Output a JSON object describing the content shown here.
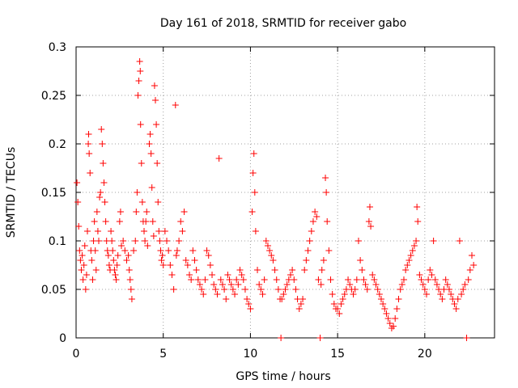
{
  "chart_data": {
    "type": "scatter",
    "title": "Day 161 of 2018, SRMTID for receiver gabo",
    "xlabel": "GPS time / hours",
    "ylabel": "SRMTID / TECUs",
    "xlim": [
      0,
      24
    ],
    "ylim": [
      0,
      0.3
    ],
    "xticks": [
      0,
      5,
      10,
      15,
      20
    ],
    "xtick_labels": [
      "0",
      "5",
      "10",
      "15",
      "20"
    ],
    "yticks": [
      0,
      0.05,
      0.1,
      0.15,
      0.2,
      0.25,
      0.3
    ],
    "ytick_labels": [
      "0",
      "0.05",
      "0.1",
      "0.15",
      "0.2",
      "0.25",
      "0.3"
    ],
    "grid": true,
    "marker": "+",
    "color": "#ff0000",
    "series": [
      {
        "name": "SRMTID",
        "points": [
          [
            0.05,
            0.16
          ],
          [
            0.1,
            0.14
          ],
          [
            0.15,
            0.115
          ],
          [
            0.2,
            0.09
          ],
          [
            0.25,
            0.08
          ],
          [
            0.3,
            0.07
          ],
          [
            0.35,
            0.085
          ],
          [
            0.4,
            0.06
          ],
          [
            0.45,
            0.075
          ],
          [
            0.5,
            0.095
          ],
          [
            0.55,
            0.05
          ],
          [
            0.6,
            0.065
          ],
          [
            0.65,
            0.11
          ],
          [
            0.7,
            0.2
          ],
          [
            0.72,
            0.21
          ],
          [
            0.75,
            0.19
          ],
          [
            0.8,
            0.17
          ],
          [
            0.85,
            0.09
          ],
          [
            0.9,
            0.08
          ],
          [
            0.95,
            0.06
          ],
          [
            1.0,
            0.1
          ],
          [
            1.05,
            0.12
          ],
          [
            1.1,
            0.09
          ],
          [
            1.15,
            0.07
          ],
          [
            1.2,
            0.13
          ],
          [
            1.25,
            0.11
          ],
          [
            1.3,
            0.1
          ],
          [
            1.35,
            0.145
          ],
          [
            1.4,
            0.15
          ],
          [
            1.45,
            0.215
          ],
          [
            1.5,
            0.2
          ],
          [
            1.55,
            0.18
          ],
          [
            1.6,
            0.16
          ],
          [
            1.65,
            0.14
          ],
          [
            1.7,
            0.12
          ],
          [
            1.75,
            0.1
          ],
          [
            1.8,
            0.09
          ],
          [
            1.85,
            0.085
          ],
          [
            1.9,
            0.075
          ],
          [
            1.95,
            0.07
          ],
          [
            2.0,
            0.11
          ],
          [
            2.05,
            0.1
          ],
          [
            2.1,
            0.09
          ],
          [
            2.15,
            0.08
          ],
          [
            2.2,
            0.07
          ],
          [
            2.25,
            0.065
          ],
          [
            2.3,
            0.06
          ],
          [
            2.35,
            0.075
          ],
          [
            2.4,
            0.085
          ],
          [
            2.5,
            0.12
          ],
          [
            2.55,
            0.13
          ],
          [
            2.6,
            0.095
          ],
          [
            2.7,
            0.1
          ],
          [
            2.8,
            0.09
          ],
          [
            2.9,
            0.08
          ],
          [
            3.0,
            0.085
          ],
          [
            3.05,
            0.07
          ],
          [
            3.1,
            0.06
          ],
          [
            3.15,
            0.05
          ],
          [
            3.2,
            0.04
          ],
          [
            3.3,
            0.09
          ],
          [
            3.4,
            0.1
          ],
          [
            3.45,
            0.13
          ],
          [
            3.5,
            0.15
          ],
          [
            3.55,
            0.25
          ],
          [
            3.6,
            0.265
          ],
          [
            3.65,
            0.285
          ],
          [
            3.68,
            0.275
          ],
          [
            3.7,
            0.22
          ],
          [
            3.75,
            0.18
          ],
          [
            3.8,
            0.14
          ],
          [
            3.85,
            0.12
          ],
          [
            3.9,
            0.11
          ],
          [
            3.95,
            0.1
          ],
          [
            4.0,
            0.12
          ],
          [
            4.05,
            0.13
          ],
          [
            4.1,
            0.095
          ],
          [
            4.2,
            0.2
          ],
          [
            4.25,
            0.21
          ],
          [
            4.3,
            0.19
          ],
          [
            4.35,
            0.155
          ],
          [
            4.4,
            0.12
          ],
          [
            4.45,
            0.105
          ],
          [
            4.5,
            0.26
          ],
          [
            4.55,
            0.245
          ],
          [
            4.6,
            0.22
          ],
          [
            4.65,
            0.18
          ],
          [
            4.7,
            0.14
          ],
          [
            4.75,
            0.11
          ],
          [
            4.8,
            0.1
          ],
          [
            4.85,
            0.09
          ],
          [
            4.9,
            0.08
          ],
          [
            4.95,
            0.085
          ],
          [
            5.0,
            0.075
          ],
          [
            5.1,
            0.11
          ],
          [
            5.2,
            0.1
          ],
          [
            5.3,
            0.09
          ],
          [
            5.4,
            0.075
          ],
          [
            5.5,
            0.065
          ],
          [
            5.6,
            0.05
          ],
          [
            5.7,
            0.24
          ],
          [
            5.75,
            0.085
          ],
          [
            5.8,
            0.09
          ],
          [
            5.9,
            0.1
          ],
          [
            6.0,
            0.12
          ],
          [
            6.1,
            0.11
          ],
          [
            6.2,
            0.13
          ],
          [
            6.3,
            0.08
          ],
          [
            6.4,
            0.075
          ],
          [
            6.5,
            0.065
          ],
          [
            6.6,
            0.06
          ],
          [
            6.7,
            0.09
          ],
          [
            6.8,
            0.08
          ],
          [
            6.9,
            0.07
          ],
          [
            7.0,
            0.06
          ],
          [
            7.1,
            0.055
          ],
          [
            7.2,
            0.05
          ],
          [
            7.3,
            0.045
          ],
          [
            7.4,
            0.06
          ],
          [
            7.5,
            0.09
          ],
          [
            7.6,
            0.085
          ],
          [
            7.7,
            0.075
          ],
          [
            7.8,
            0.065
          ],
          [
            7.9,
            0.055
          ],
          [
            8.0,
            0.05
          ],
          [
            8.1,
            0.045
          ],
          [
            8.2,
            0.185
          ],
          [
            8.3,
            0.06
          ],
          [
            8.4,
            0.055
          ],
          [
            8.5,
            0.05
          ],
          [
            8.6,
            0.04
          ],
          [
            8.7,
            0.065
          ],
          [
            8.8,
            0.06
          ],
          [
            8.9,
            0.055
          ],
          [
            9.0,
            0.05
          ],
          [
            9.1,
            0.045
          ],
          [
            9.2,
            0.06
          ],
          [
            9.3,
            0.055
          ],
          [
            9.4,
            0.07
          ],
          [
            9.5,
            0.065
          ],
          [
            9.6,
            0.06
          ],
          [
            9.7,
            0.05
          ],
          [
            9.8,
            0.04
          ],
          [
            9.9,
            0.035
          ],
          [
            10.0,
            0.03
          ],
          [
            10.1,
            0.13
          ],
          [
            10.15,
            0.17
          ],
          [
            10.2,
            0.19
          ],
          [
            10.25,
            0.15
          ],
          [
            10.3,
            0.11
          ],
          [
            10.4,
            0.07
          ],
          [
            10.5,
            0.055
          ],
          [
            10.6,
            0.05
          ],
          [
            10.7,
            0.045
          ],
          [
            10.8,
            0.06
          ],
          [
            10.9,
            0.1
          ],
          [
            11.0,
            0.095
          ],
          [
            11.1,
            0.09
          ],
          [
            11.2,
            0.085
          ],
          [
            11.3,
            0.08
          ],
          [
            11.4,
            0.07
          ],
          [
            11.5,
            0.06
          ],
          [
            11.6,
            0.05
          ],
          [
            11.7,
            0.04
          ],
          [
            11.75,
            0.0
          ],
          [
            11.8,
            0.04
          ],
          [
            11.9,
            0.045
          ],
          [
            12.0,
            0.05
          ],
          [
            12.1,
            0.055
          ],
          [
            12.2,
            0.06
          ],
          [
            12.3,
            0.065
          ],
          [
            12.4,
            0.07
          ],
          [
            12.5,
            0.06
          ],
          [
            12.6,
            0.05
          ],
          [
            12.7,
            0.04
          ],
          [
            12.8,
            0.03
          ],
          [
            12.9,
            0.035
          ],
          [
            13.0,
            0.04
          ],
          [
            13.1,
            0.07
          ],
          [
            13.2,
            0.08
          ],
          [
            13.3,
            0.09
          ],
          [
            13.4,
            0.1
          ],
          [
            13.5,
            0.11
          ],
          [
            13.6,
            0.12
          ],
          [
            13.7,
            0.13
          ],
          [
            13.8,
            0.125
          ],
          [
            13.9,
            0.06
          ],
          [
            14.0,
            0.0
          ],
          [
            14.05,
            0.055
          ],
          [
            14.1,
            0.07
          ],
          [
            14.2,
            0.08
          ],
          [
            14.3,
            0.165
          ],
          [
            14.35,
            0.15
          ],
          [
            14.4,
            0.12
          ],
          [
            14.5,
            0.09
          ],
          [
            14.6,
            0.06
          ],
          [
            14.7,
            0.045
          ],
          [
            14.8,
            0.035
          ],
          [
            14.9,
            0.03
          ],
          [
            15.0,
            0.03
          ],
          [
            15.1,
            0.025
          ],
          [
            15.2,
            0.035
          ],
          [
            15.3,
            0.04
          ],
          [
            15.4,
            0.045
          ],
          [
            15.5,
            0.05
          ],
          [
            15.6,
            0.06
          ],
          [
            15.7,
            0.055
          ],
          [
            15.8,
            0.05
          ],
          [
            15.9,
            0.045
          ],
          [
            16.0,
            0.05
          ],
          [
            16.1,
            0.06
          ],
          [
            16.2,
            0.1
          ],
          [
            16.3,
            0.08
          ],
          [
            16.4,
            0.07
          ],
          [
            16.5,
            0.06
          ],
          [
            16.6,
            0.055
          ],
          [
            16.7,
            0.05
          ],
          [
            16.8,
            0.12
          ],
          [
            16.85,
            0.135
          ],
          [
            16.9,
            0.115
          ],
          [
            17.0,
            0.065
          ],
          [
            17.1,
            0.06
          ],
          [
            17.2,
            0.055
          ],
          [
            17.3,
            0.05
          ],
          [
            17.4,
            0.045
          ],
          [
            17.5,
            0.04
          ],
          [
            17.6,
            0.035
          ],
          [
            17.7,
            0.03
          ],
          [
            17.8,
            0.025
          ],
          [
            17.9,
            0.02
          ],
          [
            18.0,
            0.015
          ],
          [
            18.1,
            0.01
          ],
          [
            18.2,
            0.012
          ],
          [
            18.3,
            0.02
          ],
          [
            18.4,
            0.03
          ],
          [
            18.5,
            0.04
          ],
          [
            18.6,
            0.05
          ],
          [
            18.7,
            0.055
          ],
          [
            18.8,
            0.06
          ],
          [
            18.9,
            0.07
          ],
          [
            19.0,
            0.075
          ],
          [
            19.1,
            0.08
          ],
          [
            19.2,
            0.085
          ],
          [
            19.3,
            0.09
          ],
          [
            19.4,
            0.095
          ],
          [
            19.5,
            0.1
          ],
          [
            19.55,
            0.135
          ],
          [
            19.6,
            0.12
          ],
          [
            19.7,
            0.065
          ],
          [
            19.8,
            0.06
          ],
          [
            19.9,
            0.055
          ],
          [
            20.0,
            0.05
          ],
          [
            20.1,
            0.045
          ],
          [
            20.2,
            0.06
          ],
          [
            20.3,
            0.07
          ],
          [
            20.4,
            0.065
          ],
          [
            20.5,
            0.1
          ],
          [
            20.6,
            0.06
          ],
          [
            20.7,
            0.055
          ],
          [
            20.8,
            0.05
          ],
          [
            20.9,
            0.045
          ],
          [
            21.0,
            0.04
          ],
          [
            21.1,
            0.05
          ],
          [
            21.2,
            0.06
          ],
          [
            21.3,
            0.055
          ],
          [
            21.4,
            0.05
          ],
          [
            21.5,
            0.045
          ],
          [
            21.6,
            0.04
          ],
          [
            21.7,
            0.035
          ],
          [
            21.8,
            0.03
          ],
          [
            21.9,
            0.04
          ],
          [
            22.0,
            0.1
          ],
          [
            22.1,
            0.045
          ],
          [
            22.2,
            0.05
          ],
          [
            22.3,
            0.055
          ],
          [
            22.4,
            0.0
          ],
          [
            22.5,
            0.06
          ],
          [
            22.6,
            0.07
          ],
          [
            22.7,
            0.085
          ],
          [
            22.8,
            0.075
          ]
        ]
      }
    ]
  }
}
